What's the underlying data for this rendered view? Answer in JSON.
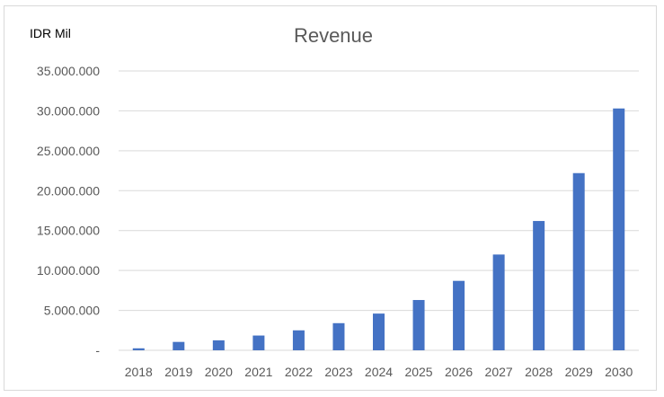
{
  "chart_data": {
    "type": "bar",
    "title": "Revenue",
    "unit_label": "IDR Mil",
    "xlabel": "",
    "ylabel": "",
    "ylim": [
      0,
      35000000
    ],
    "yticks": [
      0,
      5000000,
      10000000,
      15000000,
      20000000,
      25000000,
      30000000,
      35000000
    ],
    "ytick_labels": [
      "-",
      "5.000.000",
      "10.000.000",
      "15.000.000",
      "20.000.000",
      "25.000.000",
      "30.000.000",
      "35.000.000"
    ],
    "grid": true,
    "legend": "none",
    "categories": [
      "2018",
      "2019",
      "2020",
      "2021",
      "2022",
      "2023",
      "2024",
      "2025",
      "2026",
      "2027",
      "2028",
      "2029",
      "2030"
    ],
    "series": [
      {
        "values": [
          250000,
          1050000,
          1250000,
          1850000,
          2500000,
          3400000,
          4600000,
          6300000,
          8700000,
          12000000,
          16200000,
          22200000,
          30300000
        ],
        "color": "#4472c4"
      }
    ]
  }
}
